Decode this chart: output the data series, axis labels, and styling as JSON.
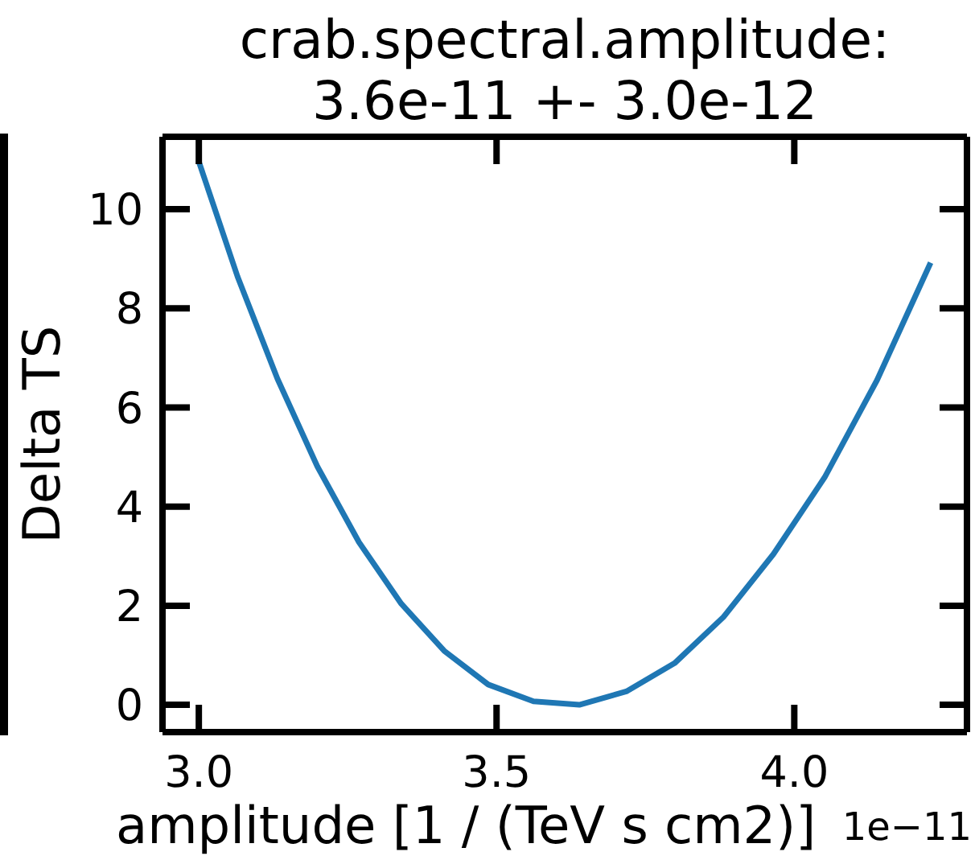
{
  "chart_data": {
    "type": "line",
    "title": "crab.spectral.amplitude:\n3.6e-11 +- 3.0e-12",
    "xlabel": "amplitude [1 / (TeV s cm2)]",
    "ylabel": "Delta TS",
    "x": [
      3.0,
      3.065,
      3.132,
      3.199,
      3.269,
      3.34,
      3.412,
      3.486,
      3.562,
      3.639,
      3.718,
      3.799,
      3.881,
      3.965,
      4.051,
      4.139,
      4.229
    ],
    "values": [
      10.96,
      8.64,
      6.58,
      4.81,
      3.28,
      2.04,
      1.09,
      0.41,
      0.07,
      0.0,
      0.27,
      0.84,
      1.77,
      3.04,
      4.59,
      6.55,
      8.92
    ],
    "color": "#1f77b4",
    "xlim": [
      2.939,
      4.29
    ],
    "ylim": [
      -0.55,
      11.46
    ],
    "xticks": [
      {
        "value": 3,
        "label": "3.0"
      },
      3.5,
      {
        "value": 4,
        "label": "4.0"
      }
    ],
    "yticks": [
      0,
      2,
      4,
      6,
      8,
      10
    ],
    "annotations": [
      "1e−11"
    ]
  }
}
